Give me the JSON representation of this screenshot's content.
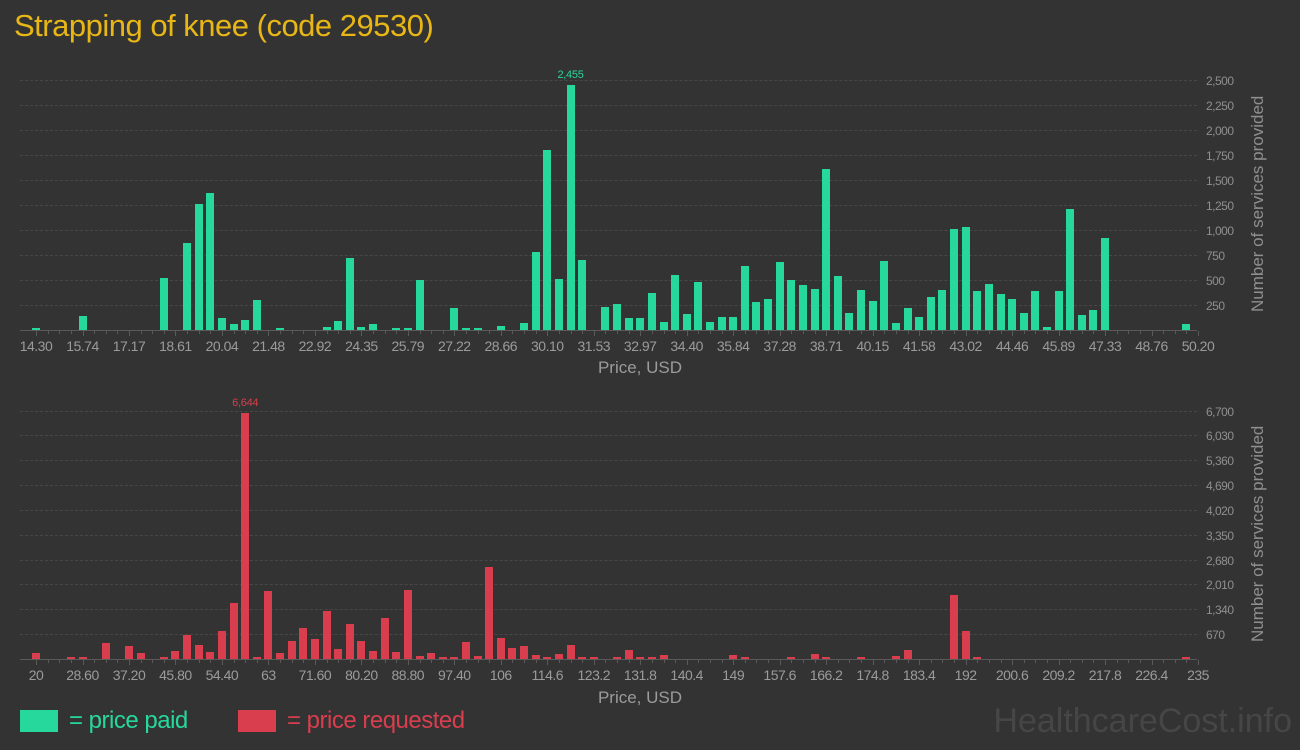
{
  "title": "Strapping of knee (code 29530)",
  "watermark": "HealthcareCost.info",
  "colors": {
    "background": "#333333",
    "title": "#e8b716",
    "paid": "#26d89c",
    "requested": "#d93e4e",
    "grid": "#474747",
    "axis": "#5a5a5a",
    "tick_text": "#9b9b9b"
  },
  "legend": [
    {
      "label": "= price paid",
      "color": "#26d89c"
    },
    {
      "label": "= price requested",
      "color": "#d93e4e"
    }
  ],
  "chart_data": [
    {
      "type": "bar",
      "series_name": "price paid",
      "color": "#26d89c",
      "xlabel": "Price, USD",
      "ylabel": "Number of services provided",
      "grid": true,
      "x_range": [
        14.3,
        50.2
      ],
      "bin_width_usd": 0.3589,
      "y_tick_interval": 250,
      "ylim": [
        0,
        2625
      ],
      "peak_annotation": "2,455",
      "x_tick_labels": [
        "14.30",
        "15.74",
        "17.17",
        "18.61",
        "20.04",
        "21.48",
        "22.92",
        "24.35",
        "25.79",
        "27.22",
        "28.66",
        "30.10",
        "31.53",
        "32.97",
        "34.40",
        "35.84",
        "37.28",
        "38.71",
        "40.15",
        "41.58",
        "43.02",
        "44.46",
        "45.89",
        "47.33",
        "48.76",
        "50.20"
      ],
      "y_tick_labels": [
        "250",
        "500",
        "750",
        "1,000",
        "1,250",
        "1,500",
        "1,750",
        "2,000",
        "2,250",
        "2,500"
      ],
      "bars_format": "[price_usd, count]",
      "bars": [
        [
          14.3,
          25
        ],
        [
          15.74,
          140
        ],
        [
          18.25,
          520
        ],
        [
          18.97,
          870
        ],
        [
          19.33,
          1260
        ],
        [
          19.68,
          1370
        ],
        [
          20.04,
          120
        ],
        [
          20.4,
          60
        ],
        [
          20.76,
          100
        ],
        [
          21.12,
          300
        ],
        [
          21.84,
          25
        ],
        [
          23.27,
          30
        ],
        [
          23.63,
          90
        ],
        [
          23.99,
          720
        ],
        [
          24.35,
          27
        ],
        [
          24.71,
          57
        ],
        [
          25.43,
          17
        ],
        [
          25.79,
          23
        ],
        [
          26.15,
          500
        ],
        [
          27.22,
          220
        ],
        [
          27.58,
          17
        ],
        [
          27.94,
          20
        ],
        [
          28.66,
          43
        ],
        [
          29.38,
          67
        ],
        [
          29.74,
          780
        ],
        [
          30.1,
          1800
        ],
        [
          30.46,
          510
        ],
        [
          30.81,
          2455
        ],
        [
          31.17,
          700
        ],
        [
          31.89,
          230
        ],
        [
          32.25,
          260
        ],
        [
          32.61,
          120
        ],
        [
          32.97,
          120
        ],
        [
          33.33,
          370
        ],
        [
          33.68,
          80
        ],
        [
          34.04,
          550
        ],
        [
          34.4,
          160
        ],
        [
          34.76,
          480
        ],
        [
          35.12,
          77
        ],
        [
          35.48,
          127
        ],
        [
          35.84,
          134
        ],
        [
          36.2,
          640
        ],
        [
          36.56,
          285
        ],
        [
          36.92,
          308
        ],
        [
          37.28,
          680
        ],
        [
          37.63,
          503
        ],
        [
          37.99,
          450
        ],
        [
          38.35,
          410
        ],
        [
          38.71,
          1610
        ],
        [
          39.07,
          543
        ],
        [
          39.43,
          168
        ],
        [
          39.79,
          396
        ],
        [
          40.15,
          295
        ],
        [
          40.51,
          690
        ],
        [
          40.87,
          67
        ],
        [
          41.22,
          220
        ],
        [
          41.58,
          130
        ],
        [
          41.94,
          335
        ],
        [
          42.3,
          400
        ],
        [
          42.66,
          1010
        ],
        [
          43.02,
          1030
        ],
        [
          43.38,
          390
        ],
        [
          43.74,
          460
        ],
        [
          44.1,
          360
        ],
        [
          44.46,
          315
        ],
        [
          44.82,
          175
        ],
        [
          45.17,
          395
        ],
        [
          45.53,
          33
        ],
        [
          45.89,
          390
        ],
        [
          46.25,
          1215
        ],
        [
          46.61,
          150
        ],
        [
          46.97,
          200
        ],
        [
          47.33,
          920
        ],
        [
          49.83,
          65
        ]
      ]
    },
    {
      "type": "bar",
      "series_name": "price requested",
      "color": "#d93e4e",
      "xlabel": "Price, USD",
      "ylabel": "Number of services provided",
      "grid": true,
      "x_range": [
        20,
        235
      ],
      "bin_width_usd": 2.15,
      "y_tick_interval": 670,
      "ylim": [
        0,
        7035
      ],
      "peak_annotation": "6,644",
      "x_tick_labels": [
        "20",
        "28.60",
        "37.20",
        "45.80",
        "54.40",
        "63",
        "71.60",
        "80.20",
        "88.80",
        "97.40",
        "106",
        "114.6",
        "123.2",
        "131.8",
        "140.4",
        "149",
        "157.6",
        "166.2",
        "174.8",
        "183.4",
        "192",
        "200.6",
        "209.2",
        "217.8",
        "226.4",
        "235"
      ],
      "y_tick_labels": [
        "670",
        "1,340",
        "2,010",
        "2,680",
        "3,350",
        "4,020",
        "4,690",
        "5,360",
        "6,030",
        "6,700"
      ],
      "bars_format": "[price_usd, count]",
      "bars": [
        [
          20.0,
          150
        ],
        [
          26.45,
          45
        ],
        [
          28.6,
          60
        ],
        [
          32.9,
          440
        ],
        [
          37.2,
          350
        ],
        [
          39.35,
          170
        ],
        [
          43.65,
          36
        ],
        [
          45.8,
          215
        ],
        [
          47.95,
          650
        ],
        [
          50.1,
          380
        ],
        [
          52.25,
          200
        ],
        [
          54.4,
          750
        ],
        [
          56.55,
          1510
        ],
        [
          58.7,
          6644
        ],
        [
          60.85,
          63
        ],
        [
          63.0,
          1840
        ],
        [
          65.15,
          153
        ],
        [
          67.3,
          480
        ],
        [
          69.45,
          840
        ],
        [
          71.6,
          540
        ],
        [
          73.75,
          1300
        ],
        [
          75.9,
          270
        ],
        [
          78.05,
          950
        ],
        [
          80.2,
          490
        ],
        [
          82.35,
          216
        ],
        [
          84.5,
          1100
        ],
        [
          86.65,
          190
        ],
        [
          88.8,
          1860
        ],
        [
          90.95,
          81
        ],
        [
          93.1,
          153
        ],
        [
          95.25,
          63
        ],
        [
          97.4,
          36
        ],
        [
          99.55,
          450
        ],
        [
          101.7,
          90
        ],
        [
          103.85,
          2490
        ],
        [
          106.0,
          570
        ],
        [
          108.15,
          300
        ],
        [
          110.3,
          340
        ],
        [
          112.45,
          117
        ],
        [
          114.6,
          27
        ],
        [
          116.75,
          135
        ],
        [
          118.9,
          370
        ],
        [
          121.05,
          18
        ],
        [
          123.2,
          45
        ],
        [
          127.5,
          36
        ],
        [
          129.65,
          240
        ],
        [
          131.8,
          27
        ],
        [
          133.95,
          63
        ],
        [
          136.1,
          110
        ],
        [
          149.0,
          100
        ],
        [
          151.15,
          63
        ],
        [
          159.75,
          18
        ],
        [
          164.05,
          125
        ],
        [
          166.2,
          45
        ],
        [
          172.65,
          27
        ],
        [
          179.1,
          90
        ],
        [
          181.25,
          240
        ],
        [
          189.85,
          1730
        ],
        [
          192.0,
          750
        ],
        [
          194.15,
          18
        ],
        [
          232.85,
          45
        ]
      ]
    }
  ]
}
